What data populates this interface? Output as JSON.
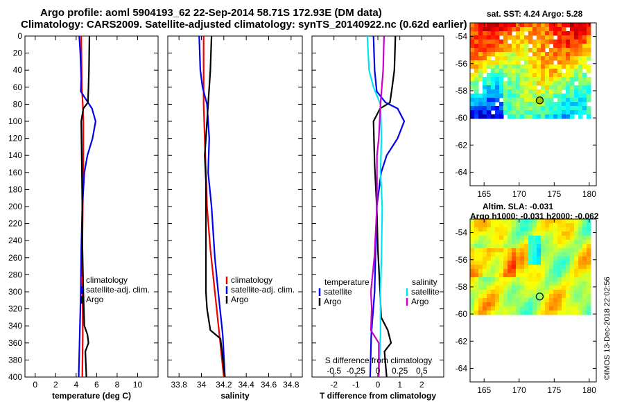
{
  "title_line1": "Argo profile: aoml 5904193_62 22-Sep-2014 58.71S 172.93E (DM data)",
  "title_line2": "Climatology: CARS2009. Satellite-adjusted climatology: synTS_20140922.nc (0.62d earlier)",
  "sst_label": "sat. SST: 4.24 Argo: 5.28",
  "sla_label1": "Altim. SLA: -0.031",
  "sla_label2": "Argo h1000: -0.031 h2000: -0.062",
  "credit": "©IMOS 13-Dec-2018 22:02:56",
  "colors": {
    "climatology": "#ee0000",
    "satellite": "#0000ee",
    "argo": "#000000",
    "satellite_s": "#00e5ee",
    "argo_s": "#cc00cc"
  },
  "chart_data": [
    {
      "type": "line",
      "xlabel": "temperature (deg C)",
      "ylabel": "",
      "xlim": [
        -1,
        12
      ],
      "ylim": [
        400,
        0
      ],
      "xticks": [
        0,
        2,
        4,
        6,
        8,
        10
      ],
      "yticks": [
        0,
        20,
        40,
        60,
        80,
        100,
        120,
        140,
        160,
        180,
        200,
        220,
        240,
        260,
        280,
        300,
        320,
        340,
        360,
        380,
        400
      ],
      "legend": [
        "climatology",
        "satellite-adj. clim.",
        "Argo"
      ],
      "series": [
        {
          "name": "climatology",
          "points": [
            [
              4.5,
              0
            ],
            [
              4.55,
              60
            ],
            [
              4.65,
              80
            ],
            [
              4.7,
              100
            ],
            [
              4.7,
              150
            ],
            [
              4.65,
              200
            ],
            [
              4.6,
              250
            ],
            [
              4.62,
              300
            ],
            [
              4.65,
              350
            ],
            [
              4.6,
              400
            ]
          ]
        },
        {
          "name": "satellite-adj. clim.",
          "points": [
            [
              4.3,
              0
            ],
            [
              4.4,
              20
            ],
            [
              4.5,
              50
            ],
            [
              4.45,
              65
            ],
            [
              5.0,
              75
            ],
            [
              5.55,
              85
            ],
            [
              5.9,
              100
            ],
            [
              5.6,
              120
            ],
            [
              5.1,
              140
            ],
            [
              4.8,
              160
            ],
            [
              4.6,
              200
            ],
            [
              4.5,
              250
            ],
            [
              4.45,
              300
            ],
            [
              4.35,
              350
            ],
            [
              4.25,
              400
            ]
          ]
        },
        {
          "name": "Argo",
          "points": [
            [
              5.3,
              0
            ],
            [
              5.25,
              40
            ],
            [
              5.2,
              60
            ],
            [
              5.15,
              78
            ],
            [
              4.7,
              85
            ],
            [
              4.5,
              100
            ],
            [
              4.55,
              150
            ],
            [
              4.6,
              200
            ],
            [
              4.6,
              240
            ],
            [
              4.7,
              300
            ],
            [
              4.8,
              340
            ],
            [
              5.1,
              350
            ],
            [
              5.2,
              360
            ],
            [
              4.9,
              370
            ],
            [
              5.0,
              400
            ]
          ]
        }
      ]
    },
    {
      "type": "line",
      "xlabel": "salinity",
      "ylabel": "",
      "xlim": [
        33.7,
        34.9
      ],
      "ylim": [
        400,
        0
      ],
      "xticks": [
        33.8,
        34,
        34.2,
        34.4,
        34.6,
        34.8
      ],
      "legend": [
        "climatology",
        "satellite-adj. clim.",
        "Argo"
      ],
      "series": [
        {
          "name": "climatology",
          "points": [
            [
              34.02,
              0
            ],
            [
              34.02,
              80
            ],
            [
              34.03,
              120
            ],
            [
              34.05,
              200
            ],
            [
              34.08,
              250
            ],
            [
              34.12,
              300
            ],
            [
              34.16,
              350
            ],
            [
              34.2,
              400
            ]
          ]
        },
        {
          "name": "satellite-adj. clim.",
          "points": [
            [
              33.98,
              0
            ],
            [
              33.99,
              40
            ],
            [
              34.01,
              60
            ],
            [
              34.05,
              80
            ],
            [
              34.07,
              120
            ],
            [
              34.06,
              160
            ],
            [
              34.09,
              200
            ],
            [
              34.12,
              260
            ],
            [
              34.15,
              300
            ],
            [
              34.19,
              350
            ],
            [
              34.21,
              400
            ]
          ]
        },
        {
          "name": "Argo",
          "points": [
            [
              34.09,
              0
            ],
            [
              34.08,
              40
            ],
            [
              34.06,
              80
            ],
            [
              34.04,
              120
            ],
            [
              34.03,
              140
            ],
            [
              34.04,
              170
            ],
            [
              34.04,
              240
            ],
            [
              34.04,
              300
            ],
            [
              34.05,
              320
            ],
            [
              34.08,
              345
            ],
            [
              34.17,
              355
            ],
            [
              34.21,
              400
            ]
          ]
        }
      ]
    },
    {
      "type": "line",
      "xlabel": "T difference from climatology",
      "xlabel_top": "S difference from climatology",
      "xlim": [
        -3,
        3
      ],
      "ylim": [
        400,
        0
      ],
      "xticks": [
        -2,
        -1,
        0,
        1,
        2
      ],
      "xticks_s": [
        -0.5,
        -0.25,
        0,
        0.25,
        0.5
      ],
      "legend_t": {
        "title": "temperature",
        "items": [
          "satellite",
          "Argo"
        ]
      },
      "legend_s": {
        "title": "salinity",
        "items": [
          "satellite",
          "Argo"
        ]
      },
      "series": [
        {
          "name": "temperature satellite",
          "points": [
            [
              -0.2,
              0
            ],
            [
              -0.15,
              40
            ],
            [
              -0.05,
              65
            ],
            [
              0.35,
              78
            ],
            [
              0.9,
              85
            ],
            [
              1.2,
              100
            ],
            [
              0.9,
              120
            ],
            [
              0.4,
              140
            ],
            [
              0.15,
              160
            ],
            [
              -0.05,
              200
            ],
            [
              -0.1,
              250
            ],
            [
              -0.15,
              300
            ],
            [
              -0.3,
              350
            ],
            [
              -0.35,
              400
            ]
          ]
        },
        {
          "name": "temperature Argo",
          "points": [
            [
              0.8,
              0
            ],
            [
              0.75,
              40
            ],
            [
              0.65,
              60
            ],
            [
              0.55,
              78
            ],
            [
              0.1,
              85
            ],
            [
              -0.2,
              100
            ],
            [
              -0.15,
              150
            ],
            [
              -0.05,
              200
            ],
            [
              0,
              250
            ],
            [
              0.1,
              300
            ],
            [
              0.15,
              330
            ],
            [
              0.45,
              345
            ],
            [
              0.6,
              360
            ],
            [
              0.3,
              370
            ],
            [
              0.4,
              400
            ]
          ]
        },
        {
          "name": "salinity satellite",
          "points": [
            [
              -0.12,
              0
            ],
            [
              -0.1,
              40
            ],
            [
              -0.05,
              60
            ],
            [
              0.03,
              80
            ],
            [
              0.04,
              120
            ],
            [
              0.03,
              160
            ],
            [
              0.05,
              200
            ],
            [
              0.04,
              260
            ],
            [
              0.03,
              300
            ],
            [
              0.03,
              350
            ],
            [
              0.01,
              400
            ]
          ]
        },
        {
          "name": "salinity Argo",
          "points": [
            [
              0.07,
              0
            ],
            [
              0.06,
              40
            ],
            [
              0.03,
              80
            ],
            [
              0.01,
              120
            ],
            [
              -0.01,
              140
            ],
            [
              -0.01,
              200
            ],
            [
              -0.04,
              260
            ],
            [
              -0.08,
              300
            ],
            [
              -0.07,
              320
            ],
            [
              -0.08,
              345
            ],
            [
              0.01,
              360
            ],
            [
              0.01,
              400
            ]
          ]
        }
      ]
    },
    {
      "type": "heatmap",
      "title": "sat. SST: 4.24 Argo: 5.28",
      "xlim": [
        163,
        181
      ],
      "ylim": [
        -65,
        -53
      ],
      "xticks": [
        165,
        170,
        175,
        180
      ],
      "yticks": [
        -54,
        -56,
        -58,
        -60,
        -62,
        -64
      ],
      "marker": {
        "lon": 172.93,
        "lat": -58.71
      }
    },
    {
      "type": "heatmap",
      "title": "Altim. SLA: -0.031",
      "subtitle": "Argo h1000: -0.031 h2000: -0.062",
      "xlim": [
        163,
        181
      ],
      "ylim": [
        -65,
        -53
      ],
      "xticks": [
        165,
        170,
        175,
        180
      ],
      "yticks": [
        -54,
        -56,
        -58,
        -60,
        -62,
        -64
      ],
      "marker": {
        "lon": 172.93,
        "lat": -58.71
      }
    }
  ]
}
